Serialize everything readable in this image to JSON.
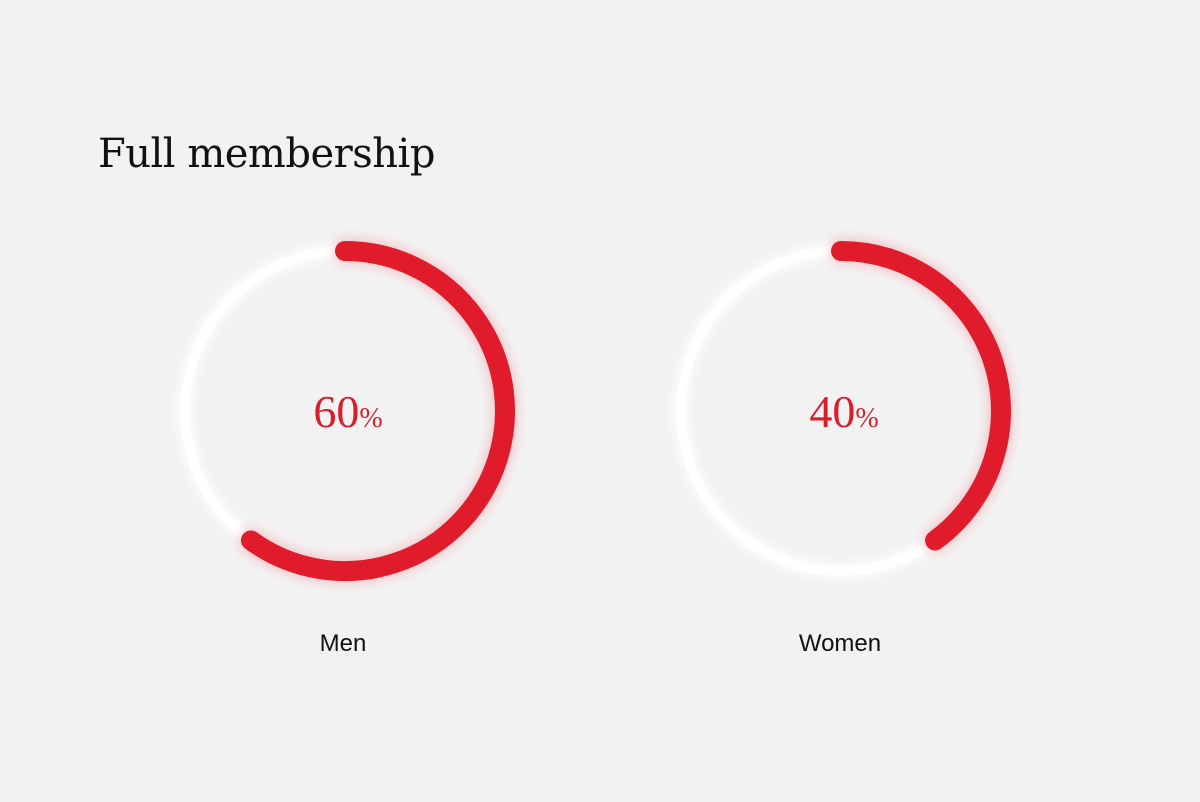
{
  "title": "Full membership",
  "colors": {
    "accent": "#e01b2b",
    "track": "#ffffff",
    "background": "#f3f2f2",
    "text": "#111111"
  },
  "chart_data": [
    {
      "type": "pie",
      "label": "Men",
      "value": 60,
      "display_number": "60",
      "unit": "%"
    },
    {
      "type": "pie",
      "label": "Women",
      "value": 40,
      "display_number": "40",
      "unit": "%"
    }
  ]
}
